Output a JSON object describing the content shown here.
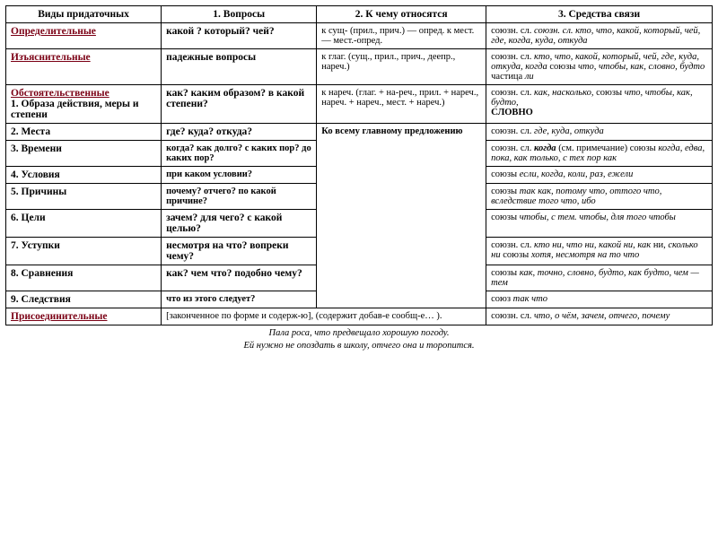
{
  "header": {
    "c1": "Виды придаточных",
    "c2": "1. Вопросы",
    "c3": "2. К чему относятся",
    "c4": "3. Средства связи"
  },
  "rows": {
    "opred": {
      "label": "Определительные",
      "q": "какой ? который? чей?",
      "rel": "к сущ- (прил., прич.) — опред. к мест. — мест.-опред.",
      "means": "союзн. сл. кто, что, какой, который, чей, где, когда, куда, откуда"
    },
    "izjas": {
      "label": "Изъяснительные",
      "q": "падежные вопросы",
      "rel": "к глаг. (сущ., прил., прич., деепр., нареч.)",
      "means_p1": "союзн. сл. ",
      "means_i1": "кто, что, какой, который, чей, где, куда, откуда, когда",
      "means_p2": " союзы ",
      "means_i2": "что, чтобы, как, словно, будто",
      "means_p3": " частица ",
      "means_i3": "ли"
    },
    "obst": {
      "label": "Обстоятельственные",
      "sub1": "1. Образа действия, меры и степени",
      "q": "как? каким образом? в какой степени?",
      "rel": "к нареч. (глаг. + на-реч., прил. + нареч., нареч. + нареч., мест. + нареч.)",
      "means_p1": "союзн. сл. ",
      "means_i1": "как, насколько,",
      "means_p2": " союзы ",
      "means_i2": "что, чтобы, как, будто,",
      "means_sl": "СЛОВНО"
    },
    "mesta": {
      "label": "2. Места",
      "q": "где? куда? откуда?",
      "rel": "Ко всему главному предложению",
      "means_p1": "союзн. сл. ",
      "means_i1": "где, куда, откуда"
    },
    "vrem": {
      "label": "3. Времени",
      "q": "когда? как долго? с каких пор? до каких пор?",
      "means_p1": "союзн. сл. ",
      "means_i1": "когда",
      "means_p2": " (см. примечание) союзы ",
      "means_i2": "когда, едва, пока, как только, с тех пор как"
    },
    "usl": {
      "label": "4. Условия",
      "q": "при каком условии?",
      "means_p1": "союзы ",
      "means_i1": "если, когда, коли, раз, ежели"
    },
    "prich": {
      "label": "5. Причины",
      "q": "почему? отчего? по какой причине?",
      "means_p1": "союзы ",
      "means_i1": "так как, потому что, оттого что, вследствие того что, ибо"
    },
    "celi": {
      "label": "6. Цели",
      "q": "зачем? для чего? с какой целью?",
      "means_p1": "союзы ",
      "means_i1": "чтобы, с тем. чтобы, для того чтобы"
    },
    "ust": {
      "label": "7. Уступки",
      "q": "несмотря на что? вопреки чему?",
      "means_p1": "союзн. сл. ",
      "means_i1": "кто ни, что ни, какой ни, как",
      "means_p2": " ни, ",
      "means_i2": "сколько ни",
      "means_p3": " союзы ",
      "means_i3": "хотя, несмотря на то что"
    },
    "srav": {
      "label": "8. Сравнения",
      "q": "как? чем что? подобно чему?",
      "means_p1": "союзы ",
      "means_i1": "как, точно, словно, будто, как будто, чем — тем"
    },
    "sled": {
      "label": "9. Следствия",
      "q": "что из этого следует?",
      "means_p1": "союз ",
      "means_i1": "так что"
    },
    "pris": {
      "label": "Присоединительные",
      "q": "[законченное по форме и содерж-ю], (содержит добав-е сообщ-е… ).",
      "means_p1": "союзн. сл. ",
      "means_i1": "что, о чём, зачем, отчего, почему"
    }
  },
  "footer": {
    "l1": "Пала роса, что предвещало хорошую погоду.",
    "l2": "Ей нужно не опоздать в школу, отчего она и торопится."
  }
}
